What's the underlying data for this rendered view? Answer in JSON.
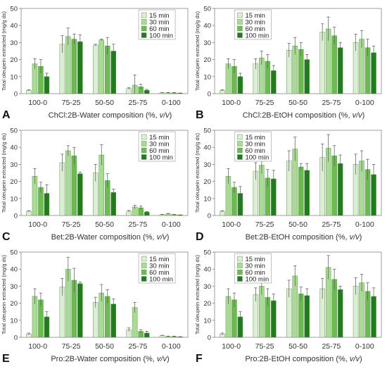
{
  "legend_labels": [
    "15 min",
    "30 min",
    "60 min",
    "100 min"
  ],
  "series_colors": [
    "#dcefd5",
    "#a8dc93",
    "#6cbb50",
    "#1f7d1c"
  ],
  "chart_data": [
    {
      "panel_letter": "A",
      "type": "bar",
      "ylabel": "Total oleupein extracted (mg/g ds)",
      "xlabel": "ChCl:2B-Water composition (%, v/v)",
      "ylim": [
        0,
        50
      ],
      "yticks": [
        0,
        10,
        20,
        30,
        40,
        50
      ],
      "categories": [
        "100-0",
        "75-25",
        "50-50",
        "25-75",
        "0-100"
      ],
      "series": [
        {
          "name": "15 min",
          "values": [
            2,
            29,
            28.5,
            3,
            0.5
          ],
          "errors": [
            0.3,
            5,
            0.5,
            0.5,
            0.2
          ]
        },
        {
          "name": "30 min",
          "values": [
            17.5,
            33.5,
            31.5,
            5,
            0.5
          ],
          "errors": [
            3,
            5,
            0.5,
            6,
            0.2
          ]
        },
        {
          "name": "60 min",
          "values": [
            16,
            32,
            28,
            4,
            0.5
          ],
          "errors": [
            4,
            3,
            5,
            1.5,
            0.2
          ]
        },
        {
          "name": "100 min",
          "values": [
            10,
            30.5,
            25,
            2,
            0.3
          ],
          "errors": [
            2,
            4,
            4,
            0.5,
            0.1
          ]
        }
      ]
    },
    {
      "panel_letter": "B",
      "type": "bar",
      "ylabel": "Total oleupein extracted (mg/g ds)",
      "xlabel": "ChCl:2B-EtOH composition (%, v/v)",
      "ylim": [
        0,
        50
      ],
      "yticks": [
        0,
        10,
        20,
        30,
        40,
        50
      ],
      "categories": [
        "100-0",
        "75-25",
        "50-50",
        "25-75",
        "0-100"
      ],
      "series": [
        {
          "name": "15 min",
          "values": [
            2,
            17.5,
            25.5,
            36,
            30
          ],
          "errors": [
            0.3,
            3,
            4,
            5,
            5
          ]
        },
        {
          "name": "30 min",
          "values": [
            17.5,
            21,
            28,
            38,
            32
          ],
          "errors": [
            3,
            4,
            5,
            7,
            5
          ]
        },
        {
          "name": "60 min",
          "values": [
            16,
            19,
            26,
            34,
            27
          ],
          "errors": [
            4,
            4,
            4,
            5,
            5
          ]
        },
        {
          "name": "100 min",
          "values": [
            10,
            13.5,
            20,
            27,
            24
          ],
          "errors": [
            2,
            3,
            3,
            3,
            4
          ]
        }
      ]
    },
    {
      "panel_letter": "C",
      "type": "bar",
      "ylabel": "Total oleupein extracted (mg/g ds)",
      "xlabel": "Bet:2B-Water composition (%, v/v)",
      "ylim": [
        0,
        50
      ],
      "yticks": [
        0,
        10,
        20,
        30,
        40,
        50
      ],
      "categories": [
        "100-0",
        "75-25",
        "50-50",
        "25-75",
        "0-100"
      ],
      "series": [
        {
          "name": "15 min",
          "values": [
            2.5,
            31,
            25,
            2.5,
            0.5
          ],
          "errors": [
            0.3,
            5,
            5,
            0.5,
            0.2
          ]
        },
        {
          "name": "30 min",
          "values": [
            23,
            38,
            35.5,
            5,
            1
          ],
          "errors": [
            4.5,
            3,
            6,
            1,
            0.2
          ]
        },
        {
          "name": "60 min",
          "values": [
            16.5,
            35,
            20.5,
            4.5,
            0.5
          ],
          "errors": [
            3,
            5,
            4,
            1,
            0.2
          ]
        },
        {
          "name": "100 min",
          "values": [
            13,
            24.5,
            13.5,
            2,
            0.3
          ],
          "errors": [
            5,
            1,
            2,
            0.3,
            0.1
          ]
        }
      ]
    },
    {
      "panel_letter": "D",
      "type": "bar",
      "ylabel": "Total oleupein extracted (mg/g ds)",
      "xlabel": "Bet:2B-EtOH composition (%, v/v)",
      "ylim": [
        0,
        50
      ],
      "yticks": [
        0,
        10,
        20,
        30,
        40,
        50
      ],
      "categories": [
        "100-0",
        "75-25",
        "50-50",
        "25-75",
        "0-100"
      ],
      "series": [
        {
          "name": "15 min",
          "values": [
            2.5,
            26,
            32,
            34,
            30
          ],
          "errors": [
            0.3,
            5,
            6,
            8,
            6
          ]
        },
        {
          "name": "30 min",
          "values": [
            23,
            29.5,
            39,
            39.5,
            32
          ],
          "errors": [
            4.5,
            5,
            7,
            8,
            6
          ]
        },
        {
          "name": "60 min",
          "values": [
            16.5,
            22,
            28.5,
            35,
            27
          ],
          "errors": [
            3,
            5,
            2,
            6,
            6
          ]
        },
        {
          "name": "100 min",
          "values": [
            13,
            21.5,
            26.5,
            30.5,
            24
          ],
          "errors": [
            4,
            5,
            4,
            5,
            6
          ]
        }
      ]
    },
    {
      "panel_letter": "E",
      "type": "bar",
      "ylabel": "Total oleupein extracted (mg/g ds)",
      "xlabel": "Pro:2B-Water composition (%, v/v)",
      "ylim": [
        0,
        50
      ],
      "yticks": [
        0,
        10,
        20,
        30,
        40,
        50
      ],
      "categories": [
        "100-0",
        "75-25",
        "50-50",
        "25-75",
        "0-100"
      ],
      "series": [
        {
          "name": "15 min",
          "values": [
            2,
            29.5,
            20.5,
            4.5,
            1
          ],
          "errors": [
            0.5,
            5,
            3,
            1,
            0.2
          ]
        },
        {
          "name": "30 min",
          "values": [
            24,
            40,
            26,
            17.5,
            0.5
          ],
          "errors": [
            4.5,
            7,
            5,
            3,
            0.2
          ]
        },
        {
          "name": "60 min",
          "values": [
            22,
            33.5,
            24,
            3.5,
            0.5
          ],
          "errors": [
            4,
            7,
            4,
            1,
            0.2
          ]
        },
        {
          "name": "100 min",
          "values": [
            12,
            31.5,
            19.5,
            2.5,
            0.3
          ],
          "errors": [
            3,
            1,
            3,
            1,
            0.1
          ]
        }
      ]
    },
    {
      "panel_letter": "F",
      "type": "bar",
      "ylabel": "Total oleupein extracted (mg/g ds)",
      "xlabel": "Pro:2B-EtOH composition (%, v/v)",
      "ylim": [
        0,
        50
      ],
      "yticks": [
        0,
        10,
        20,
        30,
        40,
        50
      ],
      "categories": [
        "100-0",
        "75-25",
        "50-50",
        "25-75",
        "0-100"
      ],
      "series": [
        {
          "name": "15 min",
          "values": [
            2,
            25,
            28.5,
            28.5,
            30
          ],
          "errors": [
            0.5,
            4,
            5,
            6,
            5
          ]
        },
        {
          "name": "30 min",
          "values": [
            24,
            30,
            36,
            41,
            32
          ],
          "errors": [
            4.5,
            5,
            6,
            7,
            5
          ]
        },
        {
          "name": "60 min",
          "values": [
            22,
            23.5,
            25.5,
            34,
            27
          ],
          "errors": [
            4,
            5,
            4,
            6,
            5
          ]
        },
        {
          "name": "100 min",
          "values": [
            12,
            21.5,
            24.5,
            28,
            24
          ],
          "errors": [
            3,
            4,
            4,
            2,
            5
          ]
        }
      ]
    }
  ]
}
